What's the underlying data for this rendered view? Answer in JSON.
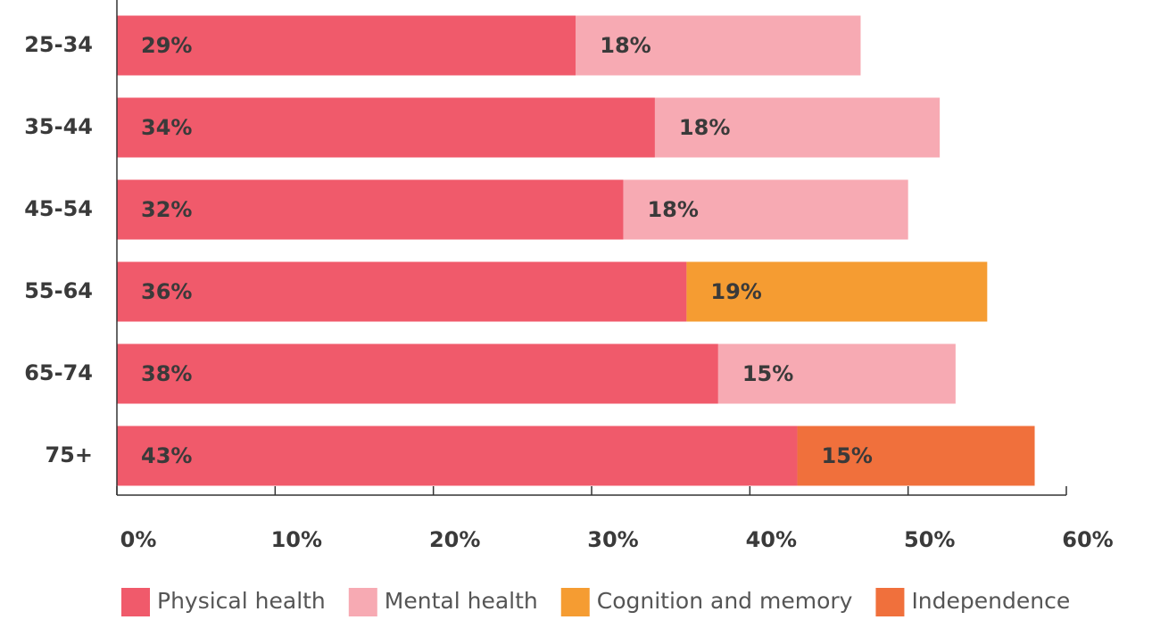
{
  "chart_data": {
    "type": "stacked-barh",
    "categories": [
      "25-34",
      "35-44",
      "45-54",
      "55-64",
      "65-74",
      "75+"
    ],
    "series": [
      {
        "name": "Physical health",
        "color": "#f05a6b",
        "values": [
          29,
          34,
          32,
          36,
          38,
          43
        ],
        "value_labels": [
          "29%",
          "34%",
          "32%",
          "36%",
          "38%",
          "43%"
        ]
      },
      {
        "name": "Mental health",
        "color": "#f7aab3",
        "values": [
          18,
          18,
          18,
          null,
          15,
          null
        ],
        "value_labels": [
          "18%",
          "18%",
          "18%",
          null,
          "15%",
          null
        ]
      },
      {
        "name": "Cognition and memory",
        "color": "#f59c32",
        "values": [
          null,
          null,
          null,
          19,
          null,
          null
        ],
        "value_labels": [
          null,
          null,
          null,
          "19%",
          null,
          null
        ]
      },
      {
        "name": "Independence",
        "color": "#f0703c",
        "values": [
          null,
          null,
          null,
          null,
          null,
          15
        ],
        "value_labels": [
          null,
          null,
          null,
          null,
          null,
          "15%"
        ]
      }
    ],
    "xlim": [
      0,
      60
    ],
    "xticks": [
      {
        "value": 0,
        "label": "0%"
      },
      {
        "value": 10,
        "label": "10%"
      },
      {
        "value": 20,
        "label": "20%"
      },
      {
        "value": 30,
        "label": "30%"
      },
      {
        "value": 40,
        "label": "40%"
      },
      {
        "value": 50,
        "label": "50%"
      },
      {
        "value": 60,
        "label": "60%"
      }
    ],
    "legend": "bottom"
  }
}
